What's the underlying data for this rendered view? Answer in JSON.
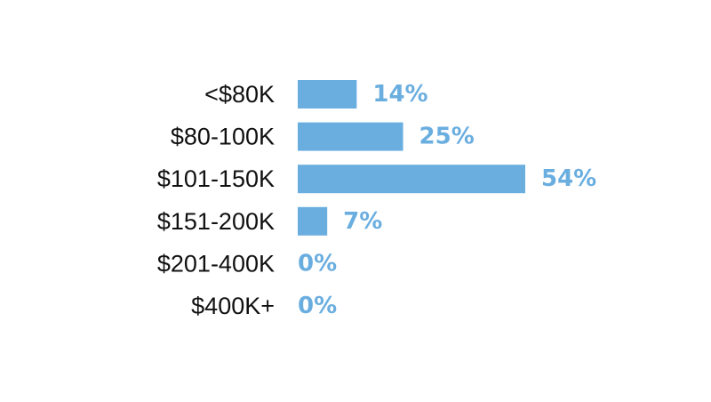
{
  "chart_data": {
    "type": "bar",
    "orientation": "horizontal",
    "categories": [
      "<$80K",
      "$80-100K",
      "$101-150K",
      "$151-200K",
      "$201-400K",
      "$400K+"
    ],
    "values": [
      14,
      25,
      54,
      7,
      0,
      0
    ],
    "data_labels": [
      "14%",
      "25%",
      "54%",
      "7%",
      "0%",
      "0%"
    ],
    "unit": "%",
    "title": "",
    "xlabel": "",
    "ylabel": "",
    "xlim": [
      0,
      54
    ],
    "grid": false,
    "legend": "none",
    "bar_color": "#6aaee0",
    "label_color": "#6aaee0",
    "text_color": "#111111"
  }
}
